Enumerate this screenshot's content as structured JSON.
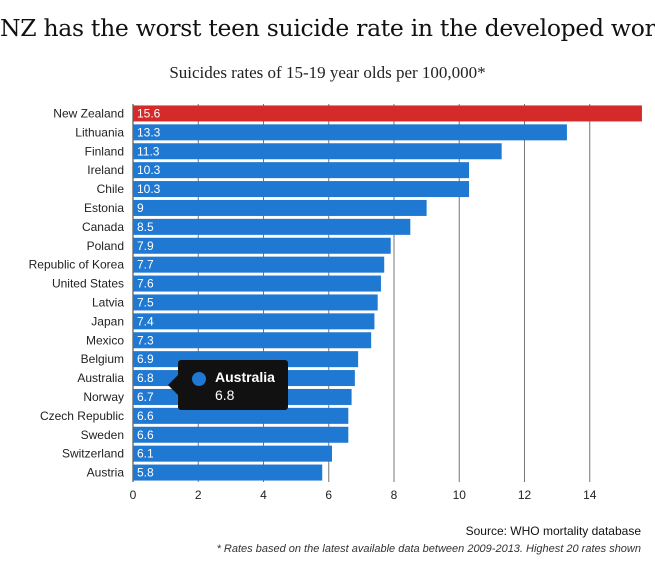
{
  "chart_data": {
    "type": "bar",
    "orientation": "horizontal",
    "title": "NZ has the worst teen suicide rate in the developed world",
    "subtitle": "Suicides rates of 15-19 year olds per 100,000*",
    "categories": [
      "New Zealand",
      "Lithuania",
      "Finland",
      "Ireland",
      "Chile",
      "Estonia",
      "Canada",
      "Poland",
      "Republic of Korea",
      "United States",
      "Latvia",
      "Japan",
      "Mexico",
      "Belgium",
      "Australia",
      "Norway",
      "Czech Republic",
      "Sweden",
      "Switzerland",
      "Austria"
    ],
    "values": [
      15.6,
      13.3,
      11.3,
      10.3,
      10.3,
      9,
      8.5,
      7.9,
      7.7,
      7.6,
      7.5,
      7.4,
      7.3,
      6.9,
      6.8,
      6.7,
      6.6,
      6.6,
      6.1,
      5.8
    ],
    "value_labels": [
      "15.6",
      "13.3",
      "11.3",
      "10.3",
      "10.3",
      "9",
      "8.5",
      "7.9",
      "7.7",
      "7.6",
      "7.5",
      "7.4",
      "7.3",
      "6.9",
      "6.8",
      "6.7",
      "6.6",
      "6.6",
      "6.1",
      "5.8"
    ],
    "x_ticks": [
      "0",
      "2",
      "4",
      "6",
      "8",
      "10",
      "12",
      "14"
    ],
    "xlim": [
      0,
      16
    ],
    "grid": true,
    "colors": {
      "default": "#1f78d1",
      "highlight": "#d42a2a"
    },
    "highlight_index": 0,
    "tooltip": {
      "name": "Australia",
      "value": "6.8"
    },
    "source": "Source: WHO mortality database",
    "footnote": "* Rates based on the latest available data between 2009-2013. Highest 20 rates shown"
  }
}
